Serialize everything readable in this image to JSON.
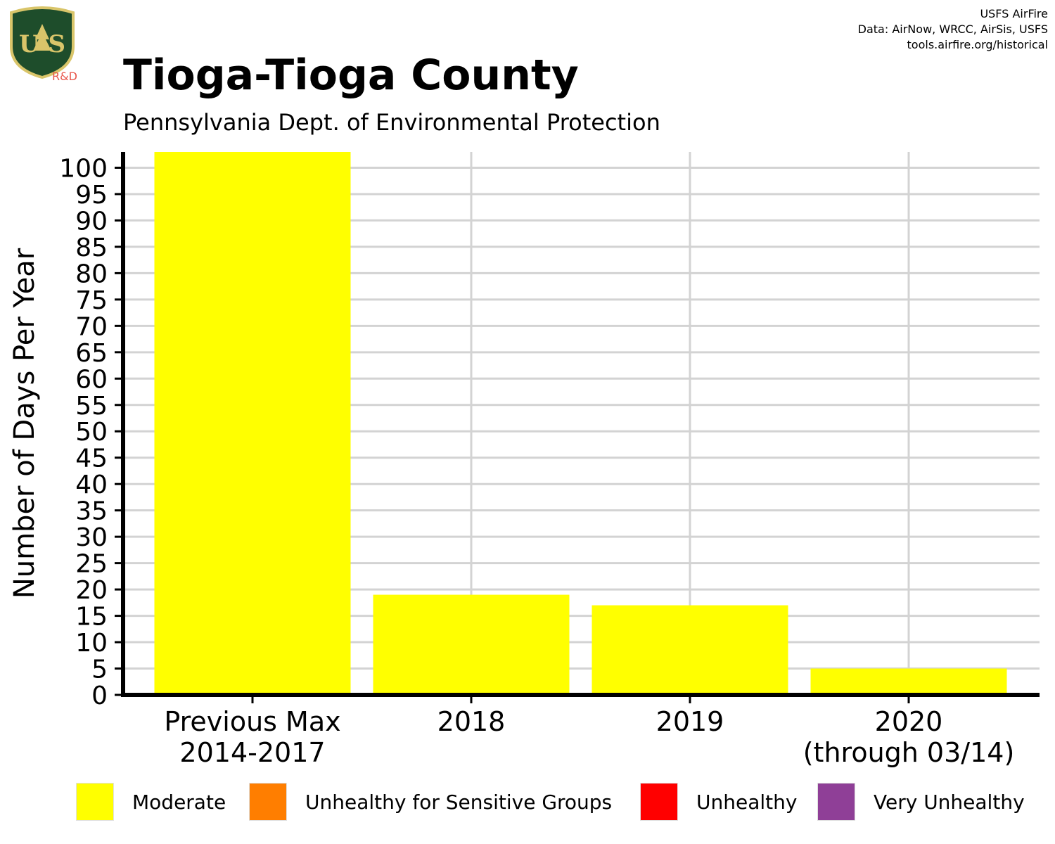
{
  "header": {
    "title": "Tioga-Tioga County",
    "subtitle": "Pennsylvania Dept. of Environmental Protection",
    "credits": [
      "USFS AirFire",
      "Data: AirNow, WRCC, AirSis, USFS",
      "tools.airfire.org/historical"
    ],
    "logo": {
      "icon": "usfs-shield-icon",
      "text": "U S",
      "caption": "R&D",
      "colors": {
        "shield": "#1e4d2b",
        "trim": "#d9c56a",
        "caption": "#e8564a"
      }
    }
  },
  "chart_data": {
    "type": "bar",
    "categories": [
      [
        "Previous Max",
        "2014-2017"
      ],
      [
        "2018"
      ],
      [
        "2019"
      ],
      [
        "2020",
        "(through 03/14)"
      ]
    ],
    "series": [
      {
        "name": "Moderate",
        "color": "#ffff00",
        "values": [
          103,
          19,
          17,
          5
        ]
      },
      {
        "name": "Unhealthy for Sensitive Groups",
        "color": "#ff7e00",
        "values": [
          0,
          0,
          0,
          0
        ]
      },
      {
        "name": "Unhealthy",
        "color": "#ff0000",
        "values": [
          0,
          0,
          0,
          0
        ]
      },
      {
        "name": "Very Unhealthy",
        "color": "#8f3f97",
        "values": [
          0,
          0,
          0,
          0
        ]
      }
    ],
    "ylabel": "Number of Days Per Year",
    "xlabel": "",
    "ylim": [
      0,
      103
    ],
    "yticks": [
      0,
      5,
      10,
      15,
      20,
      25,
      30,
      35,
      40,
      45,
      50,
      55,
      60,
      65,
      70,
      75,
      80,
      85,
      90,
      95,
      100
    ],
    "grid": true,
    "legend_position": "bottom",
    "stacked": true
  }
}
